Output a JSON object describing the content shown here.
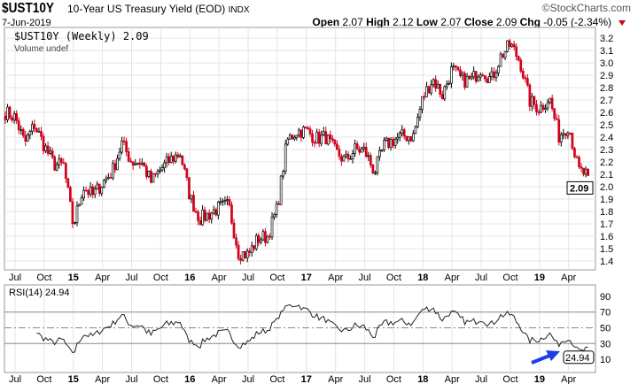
{
  "header": {
    "symbol": "$UST10Y",
    "description": "10-Year US Treasury Yield (EOD)",
    "exchange": "INDX",
    "brand": "©StockCharts.com",
    "date": "7-Jun-2019",
    "open_label": "Open",
    "open": "2.07",
    "high_label": "High",
    "high": "2.12",
    "low_label": "Low",
    "low": "2.07",
    "close_label": "Close",
    "close": "2.09",
    "chg_label": "Chg",
    "chg": "-0.05 (-2.34%)"
  },
  "legend": {
    "price": "$UST10Y (Weekly) 2.09",
    "volume": "Volume undef",
    "rsi": "RSI(14) 24.94"
  },
  "colors": {
    "up": "#000000",
    "down": "#d0021b",
    "arrow": "#1a3ee8",
    "grid": "#e4e4e4"
  },
  "chart_data": [
    {
      "type": "candlestick",
      "title": "$UST10Y (Weekly)",
      "ylim": [
        1.35,
        3.25
      ],
      "yticks": [
        1.4,
        1.5,
        1.6,
        1.7,
        1.8,
        1.9,
        2.0,
        2.1,
        2.2,
        2.3,
        2.4,
        2.5,
        2.6,
        2.7,
        2.8,
        2.9,
        3.0,
        3.1,
        3.2
      ],
      "xticks": [
        "Jul",
        "Oct",
        "15",
        "Apr",
        "Jul",
        "Oct",
        "16",
        "Apr",
        "Jul",
        "Oct",
        "17",
        "Apr",
        "Jul",
        "Oct",
        "18",
        "Apr",
        "Jul",
        "Oct",
        "19",
        "Apr"
      ],
      "monthly_close_start": "Jun 2014",
      "monthly_close": [
        2.6,
        2.56,
        2.35,
        2.5,
        2.33,
        2.18,
        2.17,
        1.68,
        2.0,
        1.93,
        2.03,
        2.12,
        2.35,
        2.2,
        2.2,
        2.04,
        2.14,
        2.22,
        2.27,
        1.92,
        1.74,
        1.78,
        1.83,
        1.85,
        1.47,
        1.45,
        1.58,
        1.6,
        1.83,
        2.37,
        2.45,
        2.45,
        2.39,
        2.4,
        2.28,
        2.21,
        2.3,
        2.29,
        2.12,
        2.33,
        2.38,
        2.41,
        2.41,
        2.72,
        2.87,
        2.74,
        2.95,
        2.86,
        2.86,
        2.96,
        2.86,
        3.05,
        3.15,
        3.01,
        2.69,
        2.63,
        2.72,
        2.41,
        2.5,
        2.13,
        2.09
      ],
      "last_value": "2.09"
    },
    {
      "type": "line",
      "title": "RSI(14)",
      "ylim": [
        0,
        100
      ],
      "yticks": [
        10,
        30,
        50,
        70,
        90
      ],
      "reference_lines": [
        30,
        50,
        70
      ],
      "last_value": "24.94",
      "xticks": [
        "Jul",
        "Oct",
        "15",
        "Apr",
        "Jul",
        "Oct",
        "16",
        "Apr",
        "Jul",
        "Oct",
        "17",
        "Apr",
        "Jul",
        "Oct",
        "18",
        "Apr",
        "Jul",
        "Oct",
        "19",
        "Apr"
      ]
    }
  ]
}
